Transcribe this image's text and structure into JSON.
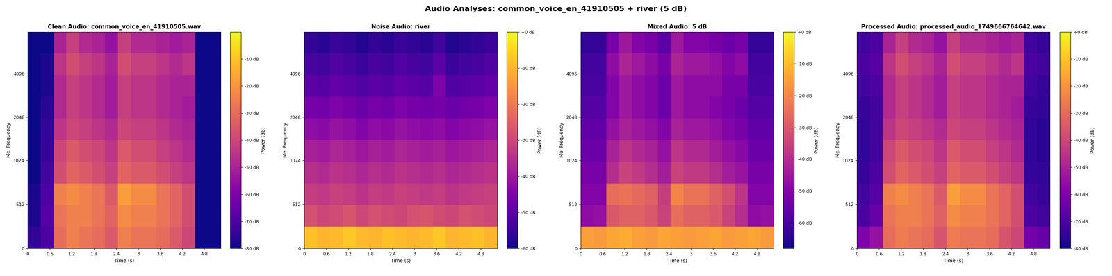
{
  "title": "Audio Analyses: common_voice_en_41910505 + river (5 dB)",
  "chart_data": [
    {
      "type": "heatmap",
      "title": "Clean Audio: common_voice_en_41910505.wav",
      "xlabel": "Time (s)",
      "ylabel": "Mel Frequency",
      "color": "plasma",
      "log": "y",
      "x_edges": [
        0,
        0.35,
        0.7,
        1.05,
        1.4,
        1.75,
        2.1,
        2.45,
        2.8,
        3.15,
        3.5,
        3.85,
        4.2,
        4.55,
        4.9,
        5.25
      ],
      "y_edges": [
        0,
        250,
        500,
        750,
        1000,
        1414,
        2000,
        2828,
        4000,
        5657,
        8000
      ],
      "values": [
        [
          -75,
          -70,
          -30,
          -25,
          -28,
          -30,
          -35,
          -25,
          -28,
          -28,
          -30,
          -35,
          -40,
          -80,
          -80
        ],
        [
          -78,
          -68,
          -28,
          -25,
          -25,
          -28,
          -32,
          -22,
          -25,
          -25,
          -28,
          -32,
          -38,
          -80,
          -80
        ],
        [
          -78,
          -70,
          -25,
          -22,
          -25,
          -28,
          -35,
          -18,
          -22,
          -22,
          -28,
          -32,
          -38,
          -80,
          -80
        ],
        [
          -80,
          -72,
          -38,
          -32,
          -35,
          -38,
          -42,
          -32,
          -35,
          -35,
          -38,
          -42,
          -45,
          -80,
          -80
        ],
        [
          -80,
          -74,
          -40,
          -35,
          -38,
          -40,
          -45,
          -35,
          -38,
          -38,
          -42,
          -45,
          -48,
          -80,
          -80
        ],
        [
          -80,
          -75,
          -45,
          -40,
          -42,
          -45,
          -48,
          -40,
          -42,
          -42,
          -45,
          -48,
          -50,
          -80,
          -80
        ],
        [
          -80,
          -76,
          -48,
          -42,
          -45,
          -48,
          -52,
          -42,
          -45,
          -45,
          -48,
          -50,
          -52,
          -80,
          -80
        ],
        [
          -80,
          -78,
          -48,
          -42,
          -45,
          -48,
          -52,
          -42,
          -45,
          -45,
          -48,
          -50,
          -50,
          -80,
          -80
        ],
        [
          -80,
          -78,
          -45,
          -38,
          -42,
          -45,
          -50,
          -38,
          -42,
          -42,
          -45,
          -48,
          -45,
          -80,
          -80
        ],
        [
          -80,
          -80,
          -50,
          -42,
          -48,
          -50,
          -55,
          -42,
          -48,
          -48,
          -50,
          -52,
          -50,
          -80,
          -80
        ]
      ],
      "xlim": [
        0,
        5.25
      ],
      "ylim": [
        0,
        8000
      ],
      "xticks": [
        0,
        0.6,
        1.2,
        1.8,
        2.4,
        3,
        3.6,
        4.2,
        4.8
      ],
      "yticks": [
        0,
        512,
        1024,
        2048,
        4096
      ],
      "colorbar": {
        "label": "Power (dB)",
        "range": [
          -80,
          0
        ],
        "ticks": [
          {
            "value": -80,
            "label": "-80 dB"
          },
          {
            "value": -70,
            "label": "-70 dB"
          },
          {
            "value": -60,
            "label": "-60 dB"
          },
          {
            "value": -50,
            "label": "-50 dB"
          },
          {
            "value": -40,
            "label": "-40 dB"
          },
          {
            "value": -30,
            "label": "-30 dB"
          },
          {
            "value": -20,
            "label": "-20 dB"
          },
          {
            "value": -10,
            "label": "-10 dB"
          }
        ]
      }
    },
    {
      "type": "heatmap",
      "title": "Noise Audio: river",
      "xlabel": "Time (s)",
      "ylabel": "Mel Frequency",
      "color": "plasma",
      "log": "y",
      "x_edges": [
        0,
        0.35,
        0.7,
        1.05,
        1.4,
        1.75,
        2.1,
        2.45,
        2.8,
        3.15,
        3.5,
        3.85,
        4.2,
        4.55,
        4.9,
        5.25
      ],
      "y_edges": [
        0,
        250,
        500,
        750,
        1000,
        1414,
        2000,
        2828,
        4000,
        5657,
        8000
      ],
      "values": [
        [
          -8,
          -10,
          -9,
          -7,
          -9,
          -10,
          -8,
          -9,
          -10,
          -9,
          -7,
          -10,
          -9,
          -8,
          -10
        ],
        [
          -28,
          -30,
          -29,
          -27,
          -30,
          -28,
          -29,
          -30,
          -28,
          -27,
          -29,
          -30,
          -28,
          -29,
          -30
        ],
        [
          -32,
          -33,
          -31,
          -32,
          -34,
          -32,
          -33,
          -31,
          -32,
          -33,
          -32,
          -34,
          -33,
          -32,
          -31
        ],
        [
          -35,
          -36,
          -34,
          -35,
          -37,
          -35,
          -36,
          -34,
          -35,
          -36,
          -35,
          -37,
          -36,
          -35,
          -34
        ],
        [
          -38,
          -39,
          -37,
          -38,
          -40,
          -38,
          -39,
          -37,
          -38,
          -39,
          -38,
          -40,
          -39,
          -38,
          -37
        ],
        [
          -42,
          -43,
          -41,
          -42,
          -44,
          -42,
          -43,
          -41,
          -42,
          -43,
          -42,
          -44,
          -43,
          -42,
          -41
        ],
        [
          -46,
          -47,
          -45,
          -46,
          -48,
          -46,
          -47,
          -45,
          -46,
          -47,
          -46,
          -48,
          -47,
          -46,
          -45
        ],
        [
          -50,
          -51,
          -49,
          -50,
          -52,
          -50,
          -51,
          -49,
          -50,
          -51,
          -45,
          -52,
          -51,
          -50,
          -49
        ],
        [
          -53,
          -54,
          -52,
          -53,
          -55,
          -53,
          -54,
          -52,
          -53,
          -54,
          -50,
          -55,
          -54,
          -53,
          -52
        ],
        [
          -56,
          -57,
          -55,
          -56,
          -58,
          -56,
          -57,
          -55,
          -56,
          -57,
          -54,
          -58,
          -57,
          -56,
          -55
        ]
      ],
      "xlim": [
        0,
        5.25
      ],
      "ylim": [
        0,
        8000
      ],
      "xticks": [
        0,
        0.6,
        1.2,
        1.8,
        2.4,
        3,
        3.6,
        4.2,
        4.8
      ],
      "yticks": [
        0,
        512,
        1024,
        2048,
        4096
      ],
      "colorbar": {
        "label": "Power (dB)",
        "range": [
          -60,
          0
        ],
        "ticks": [
          {
            "value": -60,
            "label": "-60 dB"
          },
          {
            "value": -50,
            "label": "-50 dB"
          },
          {
            "value": -40,
            "label": "-40 dB"
          },
          {
            "value": -30,
            "label": "-30 dB"
          },
          {
            "value": -20,
            "label": "-20 dB"
          },
          {
            "value": -10,
            "label": "-10 dB"
          },
          {
            "value": 0,
            "label": "+0 dB"
          }
        ]
      }
    },
    {
      "type": "heatmap",
      "title": "Mixed Audio: 5 dB",
      "xlabel": "Time (s)",
      "ylabel": "Mel Frequency",
      "color": "plasma",
      "log": "y",
      "x_edges": [
        0,
        0.35,
        0.7,
        1.05,
        1.4,
        1.75,
        2.1,
        2.45,
        2.8,
        3.15,
        3.5,
        3.85,
        4.2,
        4.55,
        4.9,
        5.25
      ],
      "y_edges": [
        0,
        250,
        500,
        750,
        1000,
        1414,
        2000,
        2828,
        4000,
        5657,
        8000
      ],
      "values": [
        [
          -15,
          -16,
          -14,
          -13,
          -15,
          -16,
          -14,
          -15,
          -16,
          -15,
          -14,
          -16,
          -15,
          -14,
          -16
        ],
        [
          -48,
          -47,
          -30,
          -28,
          -28,
          -30,
          -35,
          -25,
          -28,
          -28,
          -30,
          -35,
          -40,
          -48,
          -47
        ],
        [
          -50,
          -50,
          -25,
          -24,
          -26,
          -28,
          -36,
          -20,
          -24,
          -24,
          -28,
          -32,
          -38,
          -50,
          -50
        ],
        [
          -52,
          -52,
          -40,
          -35,
          -37,
          -40,
          -44,
          -35,
          -37,
          -37,
          -40,
          -44,
          -46,
          -52,
          -52
        ],
        [
          -54,
          -54,
          -43,
          -38,
          -41,
          -43,
          -47,
          -38,
          -41,
          -41,
          -44,
          -47,
          -49,
          -54,
          -54
        ],
        [
          -56,
          -56,
          -47,
          -43,
          -45,
          -47,
          -50,
          -43,
          -45,
          -45,
          -47,
          -50,
          -52,
          -56,
          -56
        ],
        [
          -58,
          -58,
          -50,
          -45,
          -48,
          -50,
          -54,
          -45,
          -48,
          -48,
          -50,
          -52,
          -54,
          -58,
          -58
        ],
        [
          -60,
          -60,
          -50,
          -45,
          -48,
          -50,
          -54,
          -45,
          -48,
          -48,
          -48,
          -52,
          -52,
          -60,
          -60
        ],
        [
          -61,
          -61,
          -48,
          -42,
          -45,
          -48,
          -52,
          -42,
          -45,
          -45,
          -47,
          -50,
          -48,
          -61,
          -61
        ],
        [
          -63,
          -63,
          -52,
          -45,
          -50,
          -52,
          -57,
          -45,
          -50,
          -50,
          -52,
          -54,
          -52,
          -63,
          -63
        ]
      ],
      "xlim": [
        0,
        5.25
      ],
      "ylim": [
        0,
        8000
      ],
      "xticks": [
        0,
        0.6,
        1.2,
        1.8,
        2.4,
        3,
        3.6,
        4.2,
        4.8
      ],
      "yticks": [
        0,
        512,
        1024,
        2048,
        4096
      ],
      "colorbar": {
        "label": "Power (dB)",
        "range": [
          -68,
          0
        ],
        "ticks": [
          {
            "value": -60,
            "label": "-60 dB"
          },
          {
            "value": -50,
            "label": "-50 dB"
          },
          {
            "value": -40,
            "label": "-40 dB"
          },
          {
            "value": -30,
            "label": "-30 dB"
          },
          {
            "value": -20,
            "label": "-20 dB"
          },
          {
            "value": -10,
            "label": "-10 dB"
          },
          {
            "value": 0,
            "label": "+0 dB"
          }
        ]
      }
    },
    {
      "type": "heatmap",
      "title": "Processed Audio: processed_audio_1749666764642.wav",
      "xlabel": "Time (s)",
      "ylabel": "Mel Frequency",
      "color": "plasma",
      "log": "y",
      "x_edges": [
        0,
        0.35,
        0.7,
        1.05,
        1.4,
        1.75,
        2.1,
        2.45,
        2.8,
        3.15,
        3.5,
        3.85,
        4.2,
        4.55,
        4.9,
        5.25
      ],
      "y_edges": [
        0,
        250,
        500,
        750,
        1000,
        1414,
        2000,
        2828,
        4000,
        5657,
        8000
      ],
      "values": [
        [
          -60,
          -55,
          -30,
          -26,
          -28,
          -30,
          -36,
          -26,
          -28,
          -28,
          -30,
          -36,
          -40,
          -62,
          -65
        ],
        [
          -70,
          -65,
          -28,
          -25,
          -25,
          -28,
          -33,
          -22,
          -25,
          -25,
          -28,
          -32,
          -38,
          -70,
          -72
        ],
        [
          -72,
          -68,
          -25,
          -22,
          -25,
          -28,
          -35,
          -18,
          -22,
          -22,
          -28,
          -32,
          -38,
          -72,
          -74
        ],
        [
          -74,
          -70,
          -38,
          -32,
          -35,
          -38,
          -42,
          -32,
          -35,
          -35,
          -38,
          -42,
          -45,
          -74,
          -75
        ],
        [
          -75,
          -72,
          -40,
          -35,
          -38,
          -40,
          -45,
          -35,
          -38,
          -38,
          -42,
          -45,
          -48,
          -75,
          -76
        ],
        [
          -75,
          -72,
          -45,
          -40,
          -42,
          -45,
          -48,
          -40,
          -42,
          -42,
          -45,
          -48,
          -50,
          -75,
          -76
        ],
        [
          -74,
          -72,
          -48,
          -42,
          -45,
          -48,
          -52,
          -42,
          -45,
          -45,
          -48,
          -50,
          -52,
          -74,
          -75
        ],
        [
          -72,
          -70,
          -48,
          -42,
          -45,
          -48,
          -52,
          -42,
          -45,
          -45,
          -48,
          -50,
          -50,
          -72,
          -74
        ],
        [
          -70,
          -68,
          -45,
          -38,
          -42,
          -45,
          -50,
          -38,
          -42,
          -42,
          -45,
          -48,
          -45,
          -70,
          -72
        ],
        [
          -72,
          -70,
          -50,
          -42,
          -48,
          -50,
          -55,
          -42,
          -48,
          -48,
          -50,
          -52,
          -50,
          -72,
          -74
        ]
      ],
      "xlim": [
        0,
        5.25
      ],
      "ylim": [
        0,
        8000
      ],
      "xticks": [
        0,
        0.6,
        1.2,
        1.8,
        2.4,
        3,
        3.6,
        4.2,
        4.8
      ],
      "yticks": [
        0,
        512,
        1024,
        2048,
        4096
      ],
      "colorbar": {
        "label": "Power (dB)",
        "range": [
          -80,
          0
        ],
        "ticks": [
          {
            "value": -80,
            "label": "-80 dB"
          },
          {
            "value": -70,
            "label": "-70 dB"
          },
          {
            "value": -60,
            "label": "-60 dB"
          },
          {
            "value": -50,
            "label": "-50 dB"
          },
          {
            "value": -40,
            "label": "-40 dB"
          },
          {
            "value": -30,
            "label": "-30 dB"
          },
          {
            "value": -20,
            "label": "-20 dB"
          },
          {
            "value": -10,
            "label": "-10 dB"
          },
          {
            "value": 0,
            "label": "+0 dB"
          }
        ]
      }
    }
  ]
}
